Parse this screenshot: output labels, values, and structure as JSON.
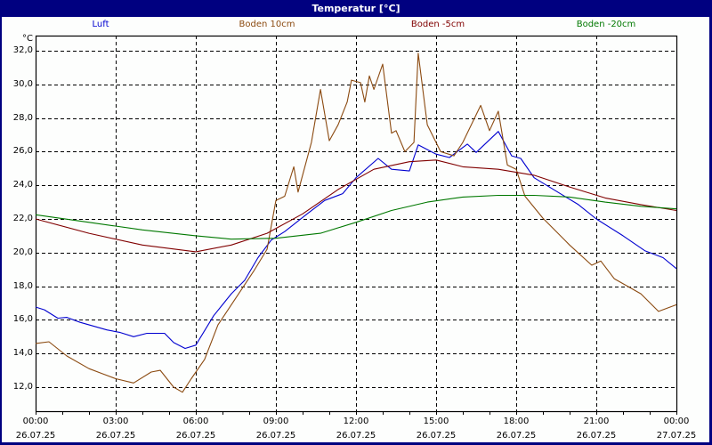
{
  "window": {
    "title": "Temperatur [°C]"
  },
  "chart_data": {
    "type": "line",
    "title": "Temperatur [°C]",
    "xlabel": "",
    "ylabel": "°C",
    "ylim": [
      10.6,
      32.9
    ],
    "yticks": [
      "12,0",
      "14,0",
      "16,0",
      "18,0",
      "20,0",
      "22,0",
      "24,0",
      "26,0",
      "28,0",
      "30,0",
      "32,0"
    ],
    "xticks": [
      {
        "time": "00:00",
        "date": "26.07.25"
      },
      {
        "time": "03:00",
        "date": "26.07.25"
      },
      {
        "time": "06:00",
        "date": "26.07.25"
      },
      {
        "time": "09:00",
        "date": "26.07.25"
      },
      {
        "time": "12:00",
        "date": "26.07.25"
      },
      {
        "time": "15:00",
        "date": "26.07.25"
      },
      {
        "time": "18:00",
        "date": "26.07.25"
      },
      {
        "time": "21:00",
        "date": "26.07.25"
      },
      {
        "time": "00:00",
        "date": "27.07.25"
      }
    ],
    "x_unit": "hours since 26.07.25 00:00",
    "grid": true,
    "legend_position": "top",
    "series": [
      {
        "name": "Luft",
        "color": "#0000d0",
        "x": [
          0,
          0.33,
          0.83,
          1.17,
          1.67,
          2.67,
          3.17,
          3.67,
          4.17,
          4.83,
          5.17,
          5.6,
          6.0,
          6.67,
          7.33,
          7.83,
          8.33,
          8.83,
          9.33,
          10.17,
          10.83,
          11.5,
          12.0,
          12.83,
          13.33,
          14.0,
          14.33,
          15.0,
          15.5,
          16.17,
          16.5,
          17.33,
          17.83,
          18.17,
          18.67,
          19.5,
          20.33,
          21.0,
          22.0,
          22.83,
          23.5,
          24.0
        ],
        "values": [
          16.76,
          16.6,
          16.1,
          16.15,
          15.85,
          15.4,
          15.25,
          15.0,
          15.2,
          15.2,
          14.65,
          14.3,
          14.5,
          16.25,
          17.55,
          18.35,
          19.7,
          20.75,
          21.25,
          22.3,
          23.1,
          23.5,
          24.45,
          25.6,
          24.95,
          24.85,
          26.4,
          25.85,
          25.65,
          26.45,
          25.95,
          27.2,
          25.75,
          25.6,
          24.45,
          23.65,
          22.85,
          22.0,
          21.0,
          20.1,
          19.7,
          19.05
        ]
      },
      {
        "name": "Boden 10cm",
        "color": "#8b4a10",
        "x": [
          0,
          0.5,
          1.17,
          2.0,
          2.5,
          3.0,
          3.67,
          4.33,
          4.67,
          5.17,
          5.5,
          5.83,
          6.33,
          6.83,
          7.5,
          8.17,
          8.67,
          9.0,
          9.33,
          9.67,
          9.83,
          10.33,
          10.67,
          11.0,
          11.33,
          11.67,
          11.83,
          12.17,
          12.33,
          12.5,
          12.67,
          13.0,
          13.33,
          13.5,
          13.83,
          14.17,
          14.33,
          14.67,
          15.17,
          15.67,
          16.0,
          16.67,
          17.0,
          17.33,
          17.67,
          18.0,
          18.33,
          19.0,
          20.0,
          20.83,
          21.17,
          21.67,
          22.67,
          23.33,
          24.0
        ],
        "values": [
          14.6,
          14.7,
          13.85,
          13.1,
          12.8,
          12.5,
          12.25,
          12.9,
          13.0,
          12.0,
          11.7,
          12.5,
          13.65,
          15.7,
          17.3,
          18.9,
          20.2,
          23.1,
          23.35,
          25.1,
          23.6,
          26.55,
          29.7,
          26.65,
          27.6,
          28.95,
          30.25,
          30.1,
          28.95,
          30.5,
          29.7,
          31.2,
          27.1,
          27.25,
          26.0,
          26.55,
          31.85,
          27.6,
          26.0,
          25.75,
          26.55,
          28.75,
          27.25,
          28.4,
          25.2,
          24.95,
          23.35,
          22.05,
          20.45,
          19.25,
          19.5,
          18.45,
          17.55,
          16.5,
          16.9
        ]
      },
      {
        "name": "Boden -5cm",
        "color": "#800000",
        "x": [
          0,
          2.0,
          4.0,
          6.0,
          7.33,
          8.67,
          10.0,
          11.33,
          12.67,
          14.0,
          15.0,
          16.0,
          17.33,
          18.67,
          20.0,
          21.33,
          22.67,
          24.0
        ],
        "values": [
          22.0,
          21.15,
          20.45,
          20.05,
          20.45,
          21.15,
          22.3,
          23.75,
          24.95,
          25.4,
          25.5,
          25.1,
          24.95,
          24.6,
          23.9,
          23.25,
          22.85,
          22.5
        ]
      },
      {
        "name": "Boden -20cm",
        "color": "#007800",
        "x": [
          0,
          2.0,
          4.0,
          6.0,
          7.33,
          9.0,
          10.67,
          12.0,
          13.33,
          14.67,
          16.0,
          17.33,
          18.67,
          20.0,
          21.33,
          22.67,
          24.0
        ],
        "values": [
          22.25,
          21.8,
          21.35,
          21.0,
          20.8,
          20.85,
          21.15,
          21.8,
          22.5,
          23.0,
          23.3,
          23.4,
          23.4,
          23.3,
          23.0,
          22.75,
          22.6
        ]
      }
    ]
  }
}
